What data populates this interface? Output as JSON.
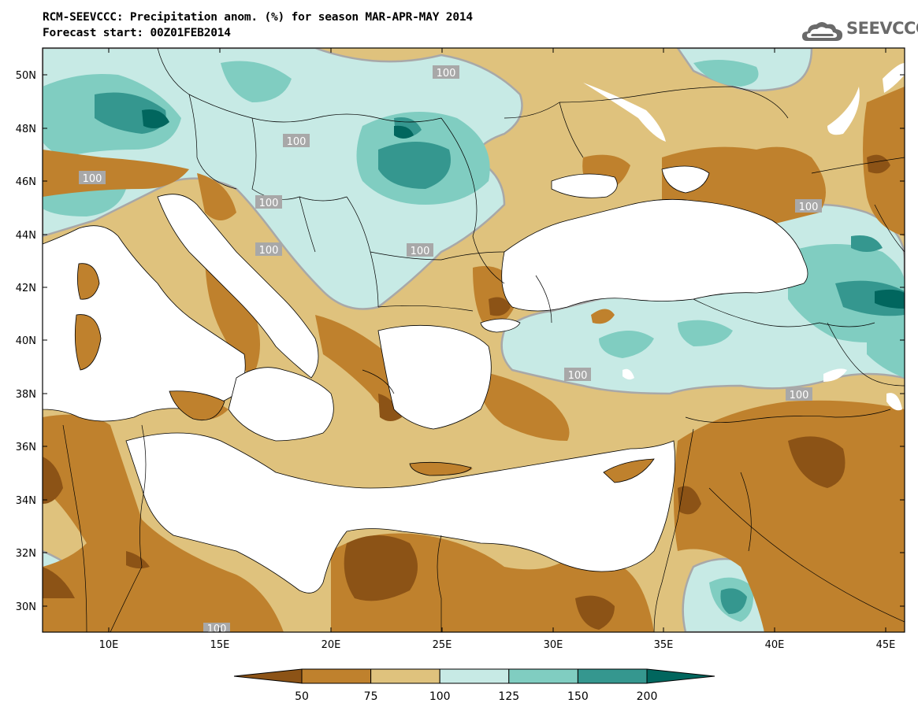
{
  "header": {
    "title": "RCM-SEEVCCC: Precipitation anom. (%) for season MAR-APR-MAY 2014",
    "subtitle": "Forecast start: 00Z01FEB2014"
  },
  "logo": {
    "text": "SEEVCCC",
    "icon": "cloud-logo-icon"
  },
  "axes": {
    "lat_ticks": [
      "50N",
      "48N",
      "46N",
      "44N",
      "42N",
      "40N",
      "38N",
      "36N",
      "34N",
      "32N",
      "30N"
    ],
    "lon_ticks": [
      "10E",
      "15E",
      "20E",
      "25E",
      "30E",
      "35E",
      "40E",
      "45E"
    ]
  },
  "contour_labels": [
    "100",
    "100",
    "100",
    "100",
    "100",
    "100",
    "100",
    "100",
    "100",
    "100"
  ],
  "colorbar": {
    "labels": [
      "50",
      "75",
      "100",
      "125",
      "150",
      "200"
    ],
    "colors": [
      "#8c5316",
      "#bf812d",
      "#dfc27d",
      "#c7eae5",
      "#80cdc1",
      "#35978f",
      "#01665e"
    ]
  },
  "palette": {
    "land_default": "#dfc27d",
    "contour_100": "#a8a8a8",
    "sea": "#ffffff"
  }
}
